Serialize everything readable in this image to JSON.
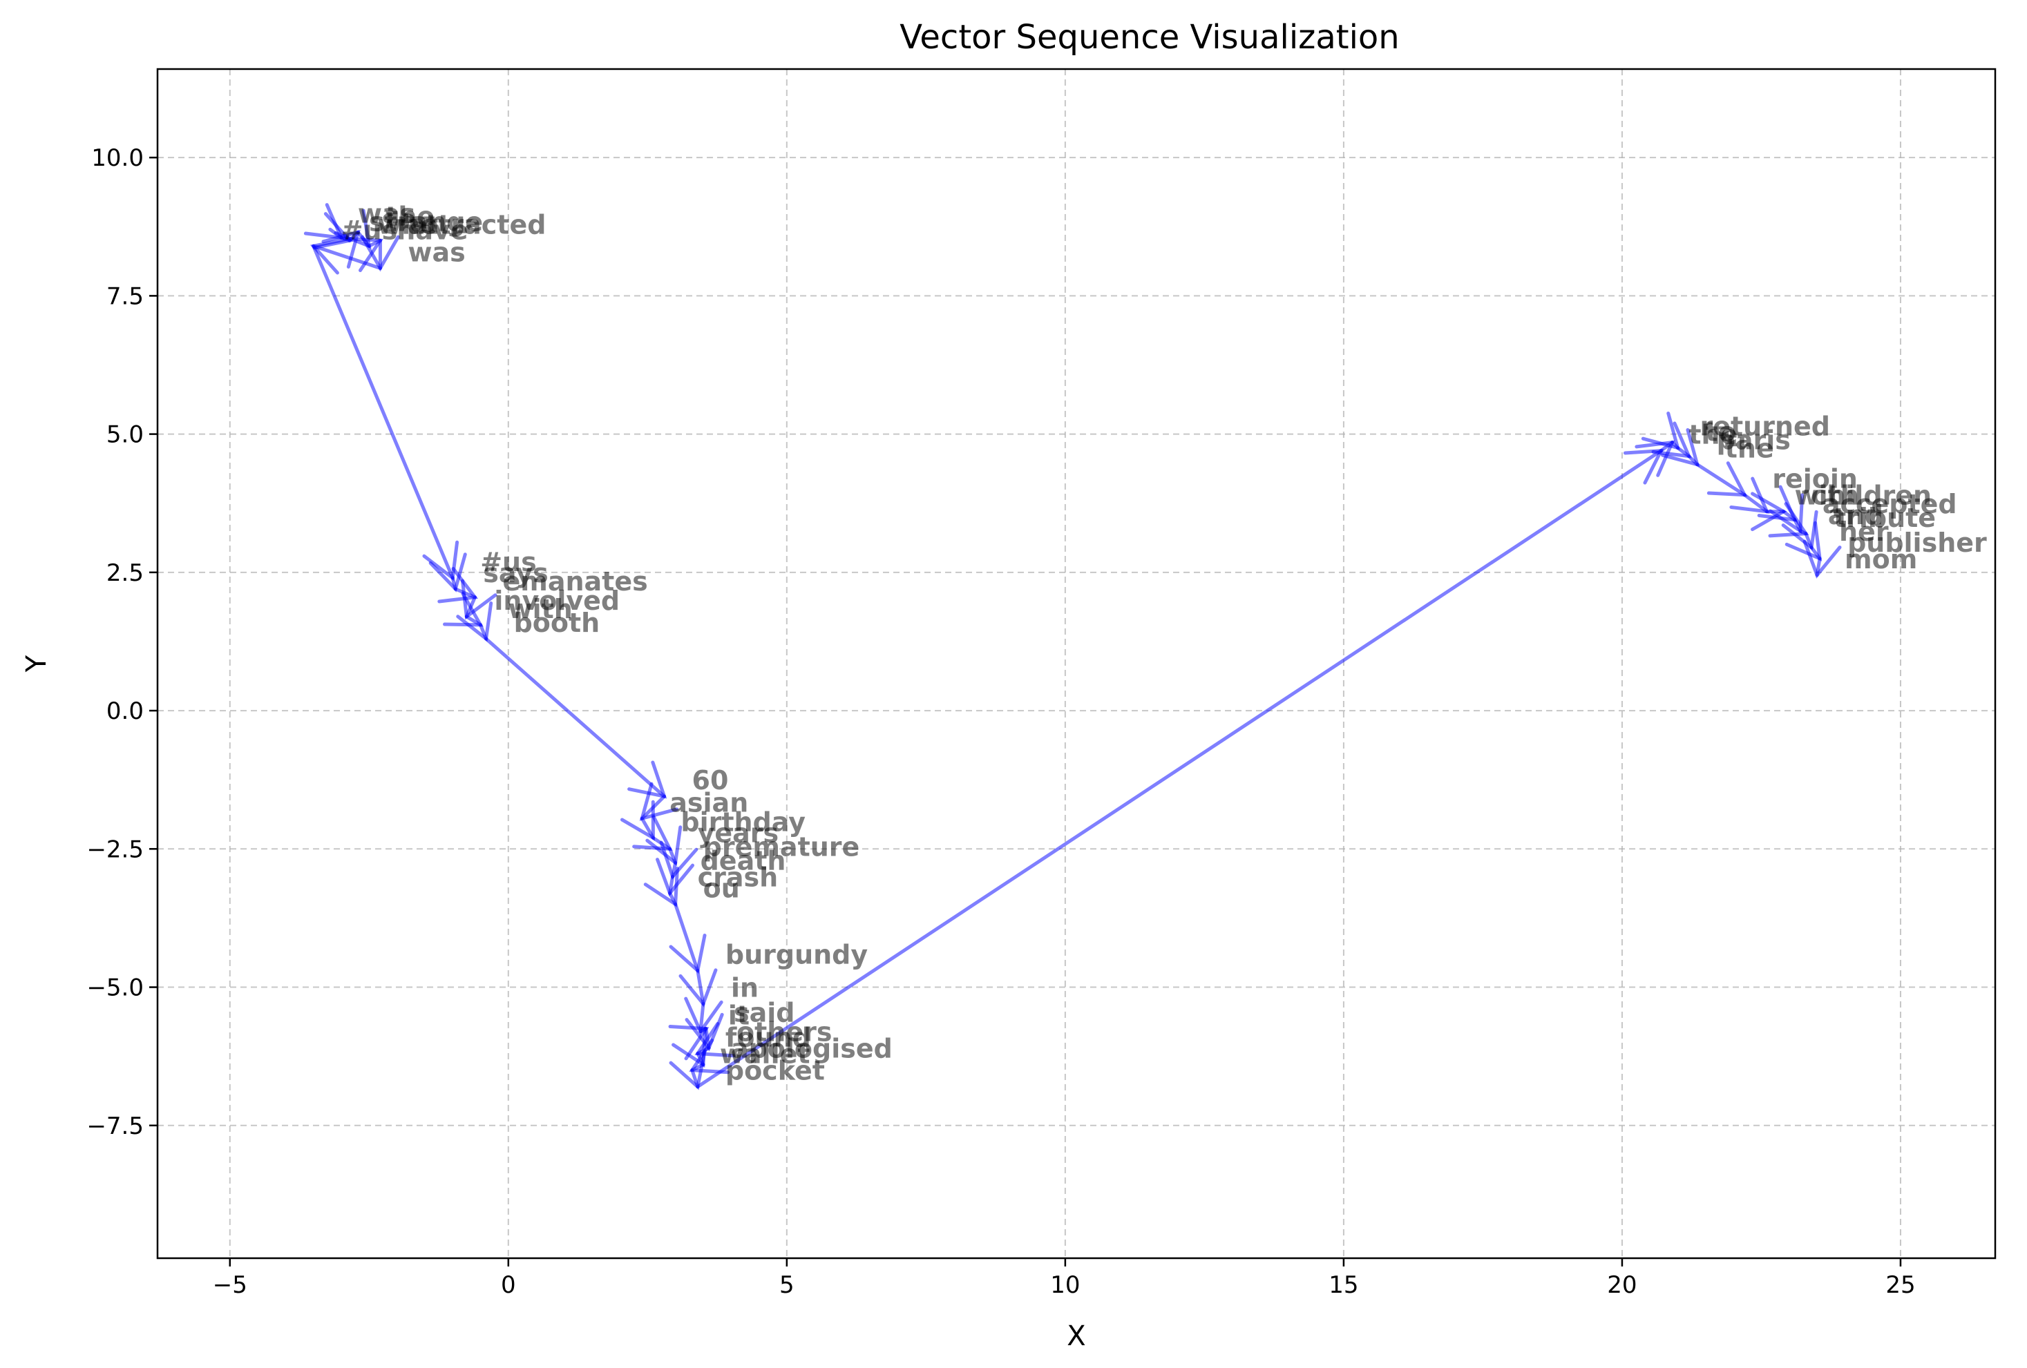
{
  "chart_data": {
    "type": "line",
    "title": "Vector Sequence Visualization",
    "xlabel": "X",
    "ylabel": "Y",
    "xlim": [
      -6.3,
      26.7
    ],
    "ylim": [
      -9.9,
      11.6
    ],
    "xticks": [
      -5,
      0,
      5,
      10,
      15,
      20,
      25
    ],
    "xtick_labels": [
      "−5",
      "0",
      "5",
      "10",
      "15",
      "20",
      "25"
    ],
    "yticks": [
      -7.5,
      -5.0,
      -2.5,
      0.0,
      2.5,
      5.0,
      7.5,
      10.0
    ],
    "ytick_labels": [
      "−7.5",
      "−5.0",
      "−2.5",
      "0.0",
      "2.5",
      "5.0",
      "7.5",
      "10.0"
    ],
    "grid": true,
    "line_color": "#0000ff",
    "points": [
      {
        "word": "was",
        "x": -3.2,
        "y": 8.7
      },
      {
        "word": "strange",
        "x": -3.0,
        "y": 8.55
      },
      {
        "word": "who",
        "x": -2.85,
        "y": 8.5
      },
      {
        "word": "the",
        "x": -2.7,
        "y": 8.65
      },
      {
        "word": "have",
        "x": -2.5,
        "y": 8.4
      },
      {
        "word": "attracted",
        "x": -2.3,
        "y": 8.5
      },
      {
        "word": "was",
        "x": -2.3,
        "y": 8.0
      },
      {
        "word": "#us",
        "x": -3.5,
        "y": 8.4
      },
      {
        "word": "#us",
        "x": -1.0,
        "y": 2.4
      },
      {
        "word": "says",
        "x": -0.95,
        "y": 2.2
      },
      {
        "word": "emanates",
        "x": -0.6,
        "y": 2.05
      },
      {
        "word": "involved",
        "x": -0.75,
        "y": 1.7
      },
      {
        "word": "with",
        "x": -0.5,
        "y": 1.55
      },
      {
        "word": "booth",
        "x": -0.4,
        "y": 1.3
      },
      {
        "word": "60",
        "x": 2.8,
        "y": -1.55
      },
      {
        "word": "asian",
        "x": 2.4,
        "y": -1.95
      },
      {
        "word": "birthday",
        "x": 2.6,
        "y": -2.3
      },
      {
        "word": "years",
        "x": 2.9,
        "y": -2.5
      },
      {
        "word": "premature",
        "x": 3.0,
        "y": -2.75
      },
      {
        "word": "death",
        "x": 2.95,
        "y": -3.0
      },
      {
        "word": "crash",
        "x": 2.9,
        "y": -3.3
      },
      {
        "word": "ou",
        "x": 3.0,
        "y": -3.5
      },
      {
        "word": "burgundy",
        "x": 3.4,
        "y": -4.7
      },
      {
        "word": "in",
        "x": 3.5,
        "y": -5.3
      },
      {
        "word": "it",
        "x": 3.45,
        "y": -5.8
      },
      {
        "word": "said",
        "x": 3.55,
        "y": -5.75
      },
      {
        "word": "others",
        "x": 3.6,
        "y": -6.1
      },
      {
        "word": "found",
        "x": 3.4,
        "y": -6.2
      },
      {
        "word": "apologised",
        "x": 3.5,
        "y": -6.4
      },
      {
        "word": "wallet",
        "x": 3.3,
        "y": -6.5
      },
      {
        "word": "pocket",
        "x": 3.4,
        "y": -6.8
      },
      {
        "word": "the",
        "x": 20.7,
        "y": 4.7
      },
      {
        "word": "returned",
        "x": 20.9,
        "y": 4.85
      },
      {
        "word": "to",
        "x": 21.0,
        "y": 4.75
      },
      {
        "word": "paris",
        "x": 21.2,
        "y": 4.6
      },
      {
        "word": "the",
        "x": 21.35,
        "y": 4.45
      },
      {
        "word": "rejoin",
        "x": 22.2,
        "y": 3.9
      },
      {
        "word": "with",
        "x": 22.6,
        "y": 3.6
      },
      {
        "word": "children",
        "x": 22.9,
        "y": 3.6
      },
      {
        "word": "accepted",
        "x": 23.1,
        "y": 3.45
      },
      {
        "word": "and",
        "x": 23.2,
        "y": 3.25
      },
      {
        "word": "tribute",
        "x": 23.3,
        "y": 3.2
      },
      {
        "word": "her",
        "x": 23.4,
        "y": 2.95
      },
      {
        "word": "publisher",
        "x": 23.55,
        "y": 2.75
      },
      {
        "word": "mom",
        "x": 23.5,
        "y": 2.45
      }
    ]
  }
}
